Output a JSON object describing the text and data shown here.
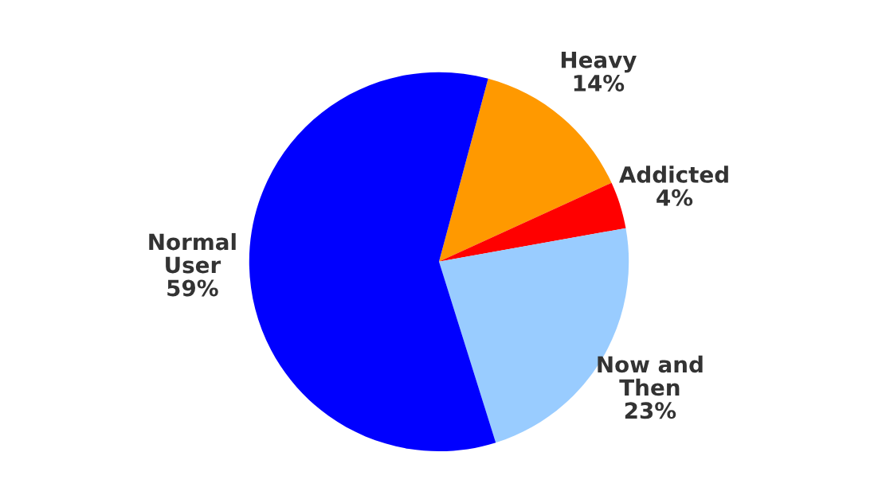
{
  "chart_data": {
    "type": "pie",
    "categories": [
      "Heavy",
      "Addicted",
      "Now and\nThen",
      "Normal\nUser"
    ],
    "values": [
      14,
      4,
      23,
      59
    ],
    "colors": [
      "#ff9900",
      "#ff0000",
      "#99ccff",
      "#0000ff"
    ],
    "value_labels": [
      "14%",
      "4%",
      "23%",
      "59%"
    ],
    "legend": false
  }
}
